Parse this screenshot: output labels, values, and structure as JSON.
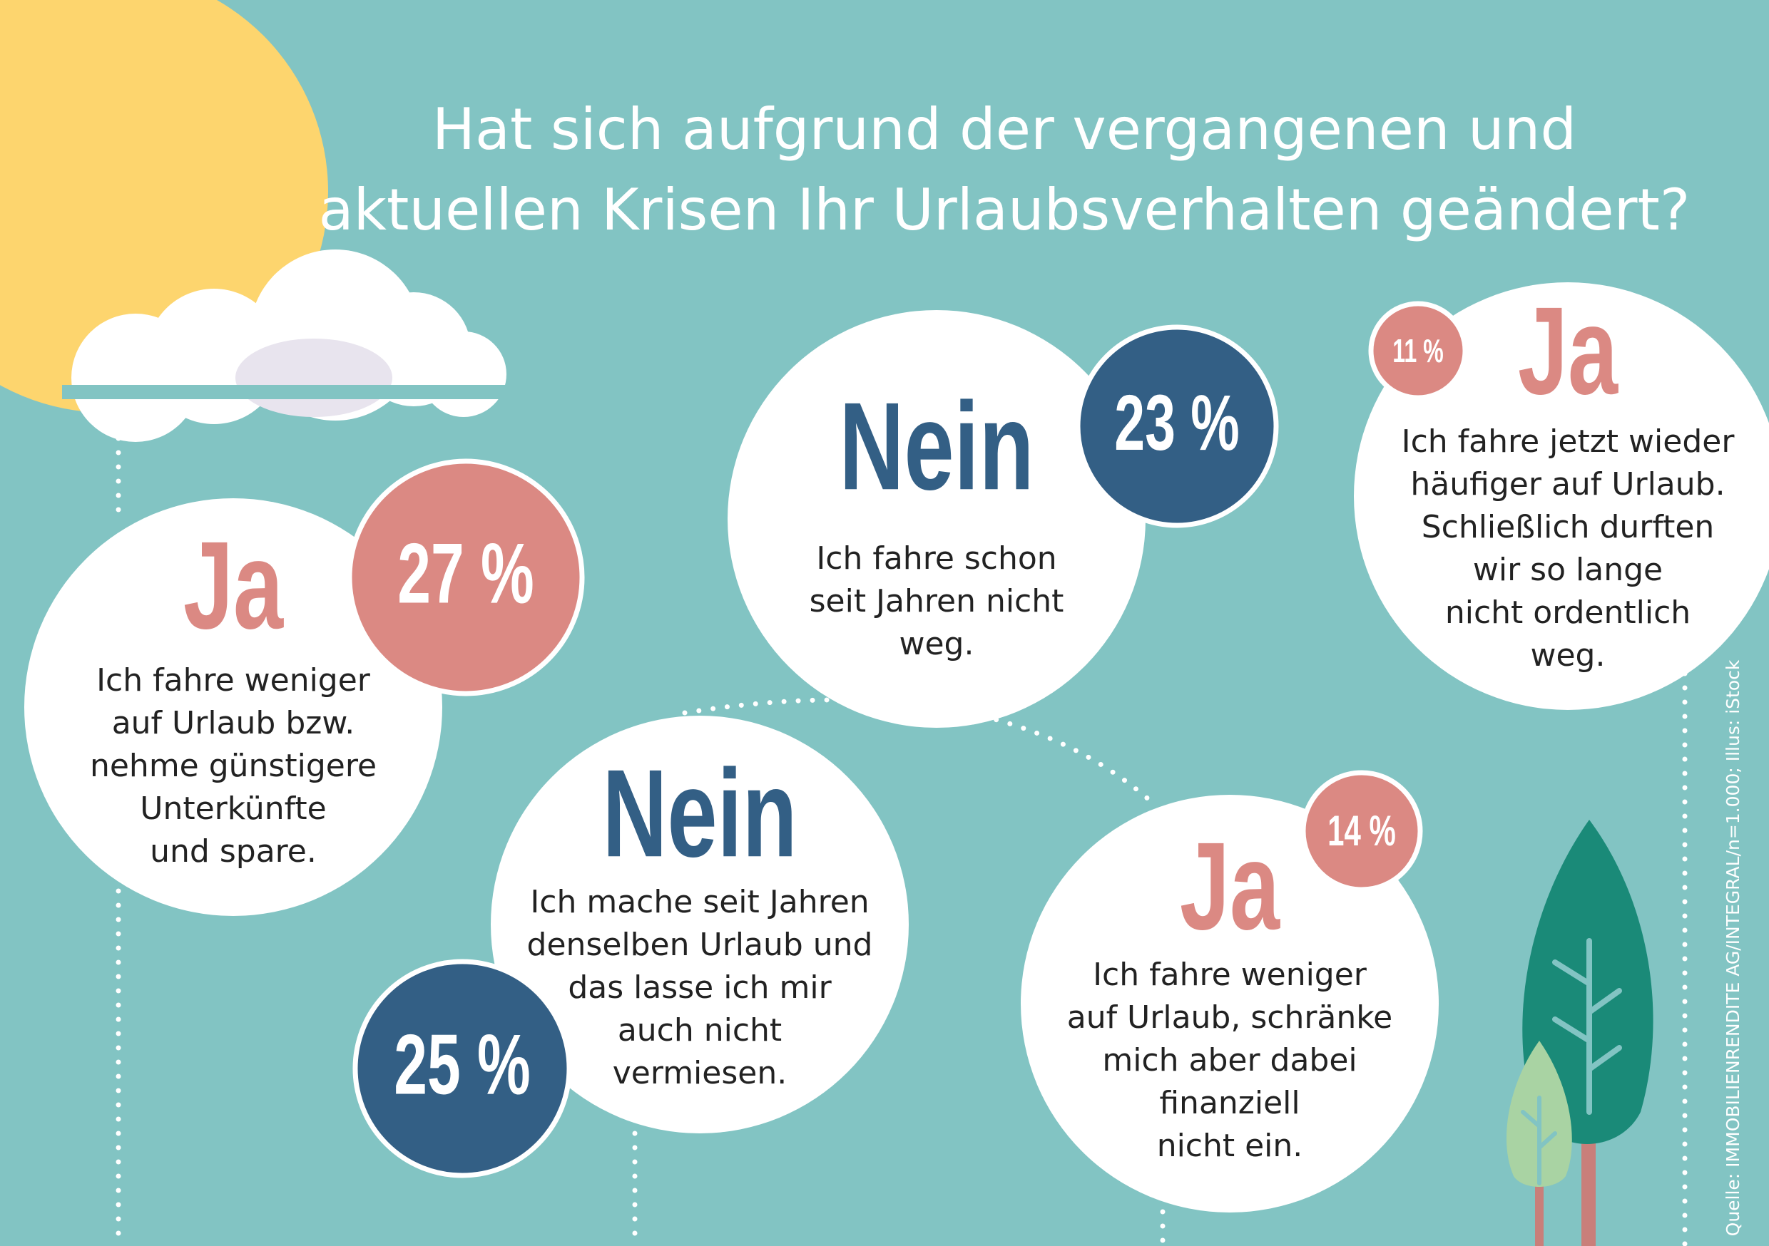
{
  "title": {
    "lines": [
      "Hat sich aufgrund der vergangenen und",
      "aktuellen Krisen Ihr Urlaubsverhalten geändert?"
    ]
  },
  "items": [
    {
      "answer": "Ja",
      "percent": "27 %",
      "lines": [
        "Ich fahre weniger",
        "auf Urlaub bzw.",
        "nehme günstigere",
        "Unterkünfte",
        "und spare."
      ]
    },
    {
      "answer": "Nein",
      "percent": "23 %",
      "lines": [
        "Ich fahre schon",
        "seit Jahren nicht",
        "weg."
      ]
    },
    {
      "answer": "Ja",
      "percent": "11 %",
      "lines": [
        "Ich fahre jetzt wieder",
        "häufiger auf Urlaub.",
        "Schließlich durften",
        "wir so lange",
        "nicht ordentlich",
        "weg."
      ]
    },
    {
      "answer": "Nein",
      "percent": "25 %",
      "lines": [
        "Ich mache seit Jahren",
        "denselben Urlaub und",
        "das lasse ich mir",
        "auch nicht",
        "vermiesen."
      ]
    },
    {
      "answer": "Ja",
      "percent": "14 %",
      "lines": [
        "Ich fahre weniger",
        "auf Urlaub, schränke",
        "mich aber dabei",
        "finanziell",
        "nicht ein."
      ]
    }
  ],
  "source": "Quelle: IMMOBILIENRENDITE AG/INTEGRAL/n=1.000; Illus: iStock"
}
